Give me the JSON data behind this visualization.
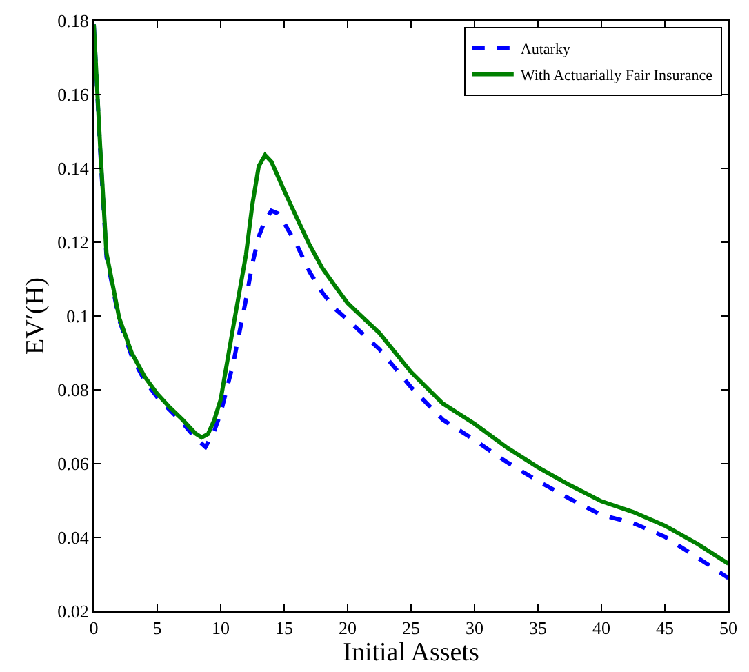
{
  "chart_data": {
    "type": "line",
    "xlabel": "Initial Assets",
    "ylabel": "EV′(H)",
    "xlim": [
      0,
      50
    ],
    "xticks": [
      0,
      5,
      10,
      15,
      20,
      25,
      30,
      35,
      40,
      45,
      50
    ],
    "ylim": [
      0.02,
      0.18
    ],
    "yticks": [
      0.02,
      0.04,
      0.06,
      0.08,
      0.1,
      0.12,
      0.14,
      0.16,
      0.18
    ],
    "legend": "top right",
    "marker": "none",
    "series": [
      {
        "name": "Autarky",
        "color": "#0000ff",
        "line_style": "dashed",
        "x": [
          0,
          0.5,
          1,
          2,
          3,
          4,
          5,
          6,
          7,
          8,
          8.8,
          9.5,
          10,
          11,
          12,
          12.5,
          13,
          13.5,
          14,
          14.5,
          15,
          16,
          17,
          18,
          19,
          20,
          22.5,
          25,
          27.5,
          30,
          32.5,
          35,
          37.5,
          40,
          42.5,
          45,
          47.5,
          50
        ],
        "values": [
          0.179,
          0.145,
          0.116,
          0.099,
          0.089,
          0.0825,
          0.078,
          0.0745,
          0.071,
          0.067,
          0.0645,
          0.0689,
          0.0737,
          0.0873,
          0.1046,
          0.1142,
          0.1215,
          0.126,
          0.1285,
          0.1278,
          0.1252,
          0.1193,
          0.112,
          0.1064,
          0.102,
          0.099,
          0.091,
          0.0807,
          0.0719,
          0.0664,
          0.0605,
          0.0553,
          0.0505,
          0.0461,
          0.0439,
          0.0402,
          0.0347,
          0.029
        ]
      },
      {
        "name": "With Actuarially Fair Insurance",
        "color": "#008000",
        "line_style": "solid",
        "x": [
          0,
          0.5,
          1,
          2,
          3,
          4,
          5,
          6,
          7,
          8,
          8.5,
          9,
          9.5,
          10,
          11,
          12,
          12.5,
          13,
          13.5,
          14,
          15,
          16,
          17,
          18,
          19,
          20,
          22.5,
          25,
          27.5,
          30,
          32.5,
          35,
          37.5,
          40,
          42.5,
          45,
          47.5,
          50
        ],
        "values": [
          0.179,
          0.146,
          0.117,
          0.0995,
          0.0899,
          0.0836,
          0.0789,
          0.0752,
          0.0719,
          0.0682,
          0.0671,
          0.068,
          0.0719,
          0.0774,
          0.0973,
          0.1167,
          0.1303,
          0.1406,
          0.1436,
          0.1418,
          0.134,
          0.1266,
          0.1193,
          0.113,
          0.1082,
          0.1035,
          0.0954,
          0.0848,
          0.0763,
          0.0708,
          0.0645,
          0.059,
          0.0542,
          0.0498,
          0.0469,
          0.0432,
          0.0384,
          0.0329
        ]
      }
    ]
  }
}
